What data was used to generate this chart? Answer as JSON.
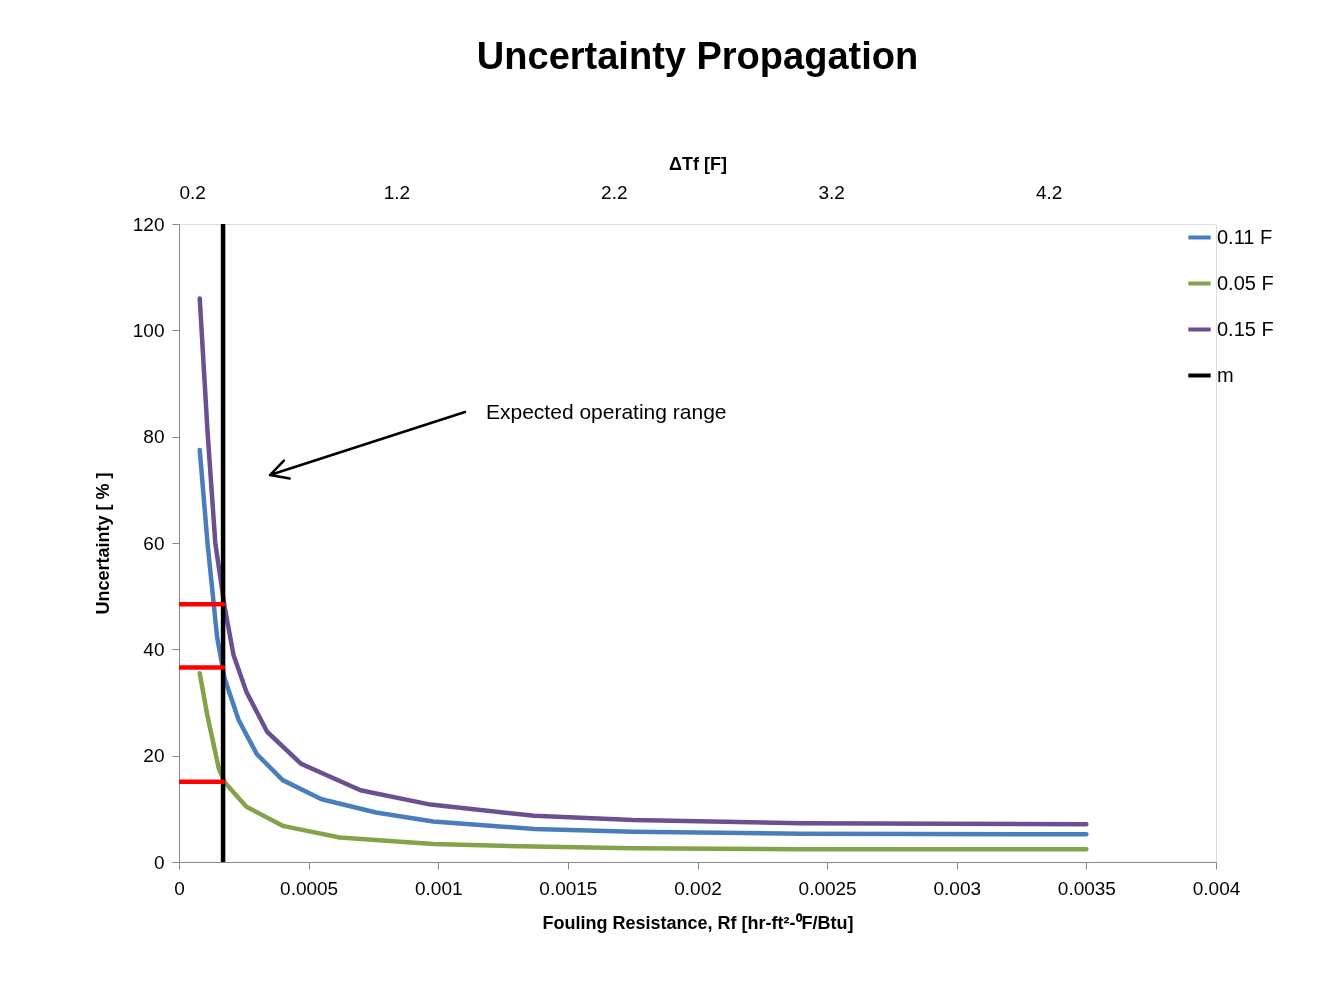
{
  "chart_data": {
    "type": "line",
    "title": "Uncertainty Propagation",
    "xlabel": "Fouling Resistance, Rf [hr-ft²-⁰F/Btu]",
    "ylabel": "Uncertainty [ % ]",
    "x2label": "ΔTf  [F]",
    "xlim": [
      0,
      0.004
    ],
    "xticks": [
      0,
      0.0005,
      0.001,
      0.0015,
      0.002,
      0.0025,
      0.003,
      0.0035,
      0.004
    ],
    "ylim": [
      0,
      120
    ],
    "yticks": [
      0,
      20,
      40,
      60,
      80,
      100,
      120
    ],
    "x2lim": [
      0.2,
      4.97
    ],
    "x2ticks": [
      0.2,
      1.2,
      2.2,
      3.2,
      4.2
    ],
    "grid": false,
    "legend": "right",
    "marker": "none",
    "line_style": "solid",
    "annotations": [
      "Expected operating range"
    ],
    "series": [
      {
        "name": "0.11 F",
        "color": "#4a7ebb",
        "x": [
          8e-05,
          0.00011,
          0.000147,
          0.000176,
          0.00023,
          0.0003,
          0.0004,
          0.00055,
          0.00076,
          0.00098,
          0.00137,
          0.00175,
          0.0024,
          0.0035
        ],
        "values": [
          77.5,
          60,
          42.3,
          34.5,
          26.7,
          20.3,
          15.4,
          11.8,
          9.3,
          7.6,
          6.2,
          5.7,
          5.3,
          5.2
        ]
      },
      {
        "name": "0.05 F",
        "color": "#84a24a",
        "x": [
          8e-05,
          0.00011,
          0.000154,
          0.000176,
          0.00026,
          0.0004,
          0.00062,
          0.00098,
          0.00137,
          0.00175,
          0.0024,
          0.0035
        ],
        "values": [
          35.5,
          27.4,
          17.5,
          15,
          10.4,
          6.8,
          4.6,
          3.4,
          2.9,
          2.6,
          2.4,
          2.4
        ]
      },
      {
        "name": "0.15 F",
        "color": "#6a5090",
        "x": [
          8e-05,
          0.00011,
          0.00014,
          0.000176,
          0.00021,
          0.00026,
          0.00034,
          0.00047,
          0.0007,
          0.00097,
          0.00137,
          0.00175,
          0.0024,
          0.0035
        ],
        "values": [
          106,
          81,
          60,
          48,
          39,
          32,
          24.5,
          18.5,
          13.5,
          10.8,
          8.7,
          7.9,
          7.3,
          7.1
        ]
      },
      {
        "name": "m",
        "color": "#000000",
        "x": [
          0.00017,
          0.00017
        ],
        "values": [
          0,
          120
        ]
      },
      {
        "color": "#ff0000",
        "x": [
          0,
          0.00017
        ],
        "values": [
          48.5,
          48.5
        ]
      },
      {
        "color": "#ff0000",
        "x": [
          0,
          0.00017
        ],
        "values": [
          36.6,
          36.6
        ]
      },
      {
        "color": "#ff0000",
        "x": [
          0,
          0.00017
        ],
        "values": [
          15.1,
          15.1
        ]
      }
    ]
  }
}
